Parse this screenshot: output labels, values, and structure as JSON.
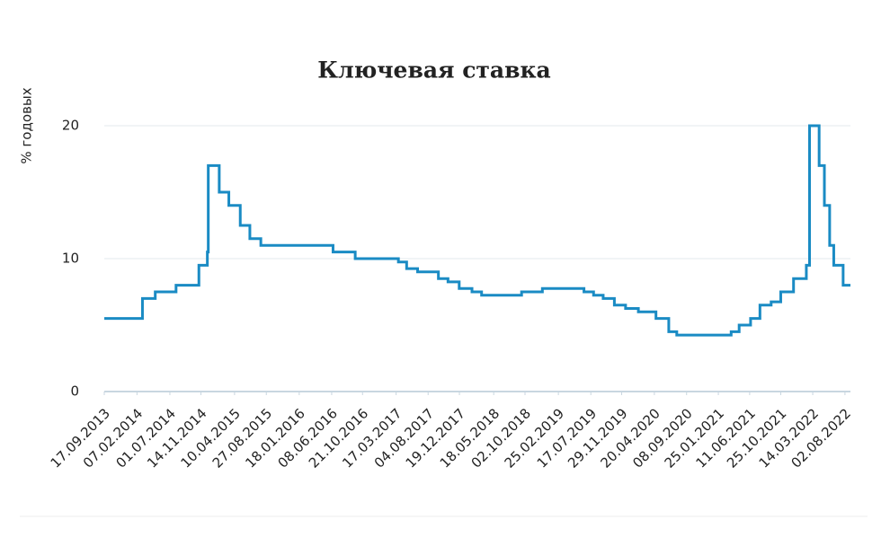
{
  "chart_data": {
    "type": "line",
    "title": "Ключевая ставка",
    "y_label": "% годовых",
    "x": [
      "17.09.2013",
      "03.03.2014",
      "28.04.2014",
      "28.07.2014",
      "05.11.2014",
      "12.12.2014",
      "16.12.2014",
      "02.02.2015",
      "16.03.2015",
      "05.05.2015",
      "16.06.2015",
      "03.08.2015",
      "14.06.2016",
      "19.09.2016",
      "27.03.2017",
      "02.05.2017",
      "19.06.2017",
      "18.09.2017",
      "30.10.2017",
      "18.12.2017",
      "12.02.2018",
      "26.03.2018",
      "17.09.2018",
      "17.12.2018",
      "17.06.2019",
      "29.07.2019",
      "09.09.2019",
      "28.10.2019",
      "16.12.2019",
      "10.02.2020",
      "27.04.2020",
      "22.06.2020",
      "27.07.2020",
      "22.03.2021",
      "26.04.2021",
      "15.06.2021",
      "26.07.2021",
      "13.09.2021",
      "25.10.2021",
      "20.12.2021",
      "14.02.2022",
      "28.02.2022",
      "11.04.2022",
      "04.05.2022",
      "27.05.2022",
      "14.06.2022",
      "25.07.2022",
      "26.08.2022"
    ],
    "series": [
      {
        "name": "Ключевая ставка",
        "color": "#1a8bc4",
        "values": [
          5.5,
          7,
          7.5,
          8,
          9.5,
          10.5,
          17,
          15,
          14,
          12.5,
          11.5,
          11,
          10.5,
          10,
          9.75,
          9.25,
          9,
          8.5,
          8.25,
          7.75,
          7.5,
          7.25,
          7.5,
          7.75,
          7.5,
          7.25,
          7,
          6.5,
          6.25,
          6,
          5.5,
          4.5,
          4.25,
          4.5,
          5,
          5.5,
          6.5,
          6.75,
          7.5,
          8.5,
          9.5,
          20,
          17,
          14,
          11,
          9.5,
          8,
          8
        ]
      }
    ],
    "step": true,
    "xlim": [
      "17.09.2013",
      "26.08.2022"
    ],
    "xticks": [
      "17.09.2013",
      "07.02.2014",
      "01.07.2014",
      "14.11.2014",
      "10.04.2015",
      "27.08.2015",
      "18.01.2016",
      "08.06.2016",
      "21.10.2016",
      "17.03.2017",
      "04.08.2017",
      "19.12.2017",
      "18.05.2018",
      "02.10.2018",
      "25.02.2019",
      "17.07.2019",
      "29.11.2019",
      "20.04.2020",
      "08.09.2020",
      "25.01.2021",
      "11.06.2021",
      "25.10.2021",
      "14.03.2022",
      "02.08.2022"
    ],
    "ylim": [
      0,
      20
    ],
    "yticks": [
      0,
      10,
      20
    ],
    "grid": true
  }
}
